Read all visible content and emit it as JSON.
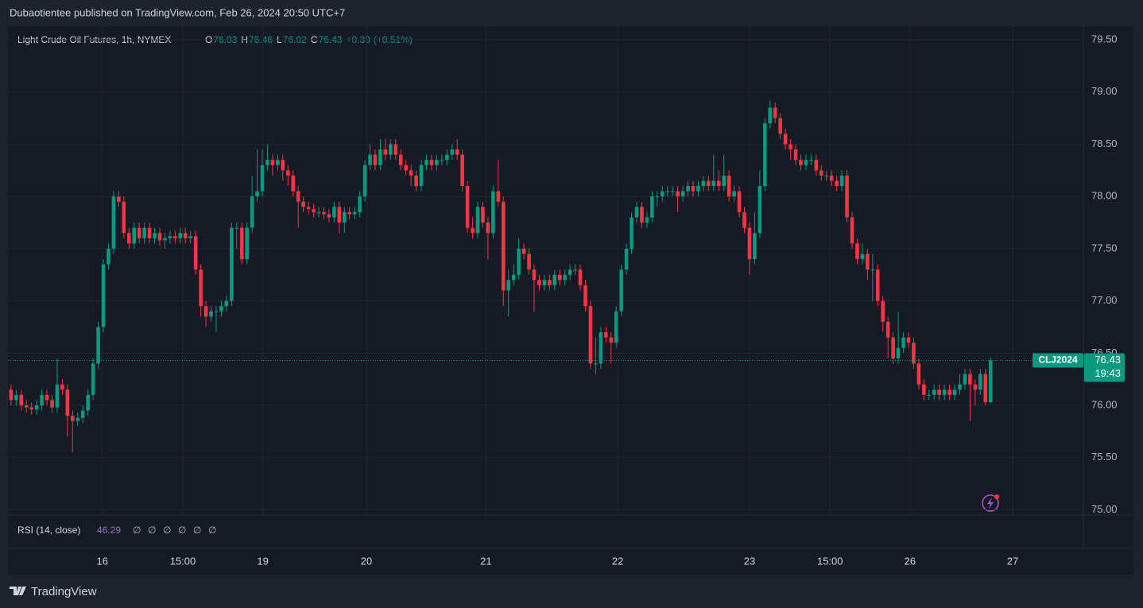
{
  "header": {
    "text": "Dubaotientee published on TradingView.com, Feb 26, 2024 20:50 UTC+7"
  },
  "footer": {
    "logo": "TradingView"
  },
  "chart_data": {
    "type": "candlestick",
    "title": "Light Crude Oil Futures, 1h, NYMEX",
    "legend_labels": {
      "open": "O",
      "high": "H",
      "low": "L",
      "close": "C"
    },
    "change": "+0.39",
    "change_pct": "(+0.51%)",
    "symbol": "CLJ2024",
    "countdown": "19:43",
    "up_color": "#089981",
    "down_color": "#f23645",
    "open": [
      76.15,
      76.05,
      76.1,
      76.0,
      75.98,
      75.96,
      76.0,
      76.1,
      76.05,
      75.98,
      76.2,
      76.15,
      75.9,
      75.85,
      75.88,
      75.95,
      76.1,
      76.4,
      76.75,
      77.35,
      77.5,
      78.0,
      77.95,
      77.65,
      77.55,
      77.7,
      77.6,
      77.7,
      77.6,
      77.65,
      77.58,
      77.6,
      77.62,
      77.6,
      77.65,
      77.6,
      77.62,
      77.3,
      76.95,
      76.85,
      76.9,
      76.9,
      76.95,
      77.0,
      77.7,
      77.7,
      77.4,
      77.7,
      78.0,
      78.05,
      78.3,
      78.35,
      78.3,
      78.35,
      78.25,
      78.2,
      78.05,
      77.95,
      77.9,
      77.88,
      77.85,
      77.85,
      77.83,
      77.8,
      77.9,
      77.75,
      77.85,
      77.83,
      77.85,
      78.0,
      78.3,
      78.4,
      78.3,
      78.45,
      78.4,
      78.5,
      78.4,
      78.3,
      78.25,
      78.2,
      78.1,
      78.3,
      78.35,
      78.3,
      78.35,
      78.35,
      78.4,
      78.45,
      78.4,
      78.1,
      77.7,
      77.65,
      77.9,
      77.75,
      77.65,
      78.05,
      77.95,
      77.1,
      77.2,
      77.25,
      77.5,
      77.45,
      77.3,
      77.2,
      77.15,
      77.2,
      77.15,
      77.25,
      77.2,
      77.25,
      77.3,
      77.3,
      77.15,
      76.95,
      76.4,
      76.4,
      76.7,
      76.65,
      76.6,
      76.9,
      77.3,
      77.5,
      77.8,
      77.9,
      77.75,
      77.8,
      78.0,
      78.0,
      78.05,
      78.05,
      78.05,
      78.0,
      78.05,
      78.1,
      78.05,
      78.1,
      78.15,
      78.1,
      78.15,
      78.1,
      78.2,
      78.0,
      78.05,
      77.85,
      77.7,
      77.4,
      77.65,
      78.1,
      78.7,
      78.85,
      78.75,
      78.6,
      78.5,
      78.45,
      78.35,
      78.3,
      78.35,
      78.35,
      78.25,
      78.2,
      78.2,
      78.15,
      78.1,
      78.2,
      77.8,
      77.55,
      77.4,
      77.45,
      77.3,
      77.3,
      77.0,
      76.8,
      76.65,
      76.45,
      76.55,
      76.65,
      76.6,
      76.4,
      76.2,
      76.1,
      76.1,
      76.15,
      76.1,
      76.15,
      76.1,
      76.15,
      76.2,
      76.3,
      76.2,
      76.15,
      76.3,
      76.03
    ],
    "high": [
      76.2,
      76.15,
      76.15,
      76.05,
      76.03,
      76.05,
      76.15,
      76.15,
      76.1,
      76.45,
      76.25,
      76.2,
      75.95,
      75.93,
      76.0,
      76.15,
      76.45,
      76.8,
      77.4,
      77.55,
      78.05,
      78.05,
      78.0,
      77.7,
      77.75,
      77.75,
      77.75,
      77.75,
      77.7,
      77.7,
      77.65,
      77.67,
      77.67,
      77.7,
      77.7,
      77.67,
      77.67,
      77.35,
      77.0,
      76.95,
      76.95,
      77.0,
      77.05,
      77.75,
      77.75,
      77.75,
      77.75,
      78.2,
      78.45,
      78.45,
      78.5,
      78.4,
      78.4,
      78.4,
      78.3,
      78.25,
      78.1,
      78.0,
      77.95,
      77.93,
      77.9,
      77.9,
      77.88,
      77.95,
      77.95,
      77.9,
      77.9,
      77.9,
      78.05,
      78.35,
      78.5,
      78.45,
      78.55,
      78.55,
      78.55,
      78.55,
      78.45,
      78.35,
      78.3,
      78.25,
      78.35,
      78.4,
      78.4,
      78.4,
      78.4,
      78.45,
      78.5,
      78.55,
      78.45,
      78.15,
      77.8,
      77.95,
      77.95,
      77.8,
      78.1,
      78.35,
      78.0,
      77.3,
      77.35,
      77.6,
      77.55,
      77.5,
      77.35,
      77.25,
      77.25,
      77.25,
      77.3,
      77.3,
      77.3,
      77.35,
      77.35,
      77.35,
      77.2,
      77.0,
      76.65,
      76.75,
      76.75,
      76.7,
      76.95,
      77.35,
      77.55,
      77.85,
      77.95,
      77.95,
      77.85,
      78.05,
      78.05,
      78.1,
      78.1,
      78.1,
      78.1,
      78.1,
      78.15,
      78.15,
      78.15,
      78.2,
      78.2,
      78.4,
      78.25,
      78.4,
      78.25,
      78.1,
      78.1,
      77.9,
      77.75,
      77.85,
      78.25,
      78.75,
      78.92,
      78.9,
      78.8,
      78.65,
      78.55,
      78.5,
      78.4,
      78.4,
      78.4,
      78.4,
      78.3,
      78.25,
      78.25,
      78.2,
      78.25,
      78.25,
      77.85,
      77.6,
      77.55,
      77.5,
      77.45,
      77.35,
      77.05,
      76.85,
      76.7,
      76.9,
      76.7,
      76.7,
      76.65,
      76.45,
      76.25,
      76.15,
      76.2,
      76.2,
      76.2,
      76.2,
      76.2,
      76.3,
      76.35,
      76.35,
      76.25,
      76.35,
      76.35,
      76.46
    ],
    "low": [
      76.0,
      76.0,
      75.95,
      75.93,
      75.91,
      75.91,
      75.95,
      76.0,
      75.93,
      75.93,
      76.1,
      75.7,
      75.55,
      75.8,
      75.83,
      75.9,
      76.05,
      76.35,
      76.7,
      77.3,
      77.45,
      77.9,
      77.6,
      77.5,
      77.5,
      77.55,
      77.55,
      77.55,
      77.55,
      77.53,
      77.5,
      77.55,
      77.55,
      77.55,
      77.55,
      77.55,
      77.25,
      76.85,
      76.75,
      76.8,
      76.7,
      76.85,
      76.9,
      76.95,
      77.5,
      77.35,
      77.35,
      77.65,
      77.95,
      78.0,
      78.25,
      78.2,
      78.25,
      78.15,
      78.1,
      78.0,
      77.7,
      77.85,
      77.83,
      77.8,
      77.8,
      77.78,
      77.75,
      77.75,
      77.65,
      77.65,
      77.78,
      77.78,
      77.8,
      77.95,
      78.25,
      78.25,
      78.25,
      78.35,
      78.35,
      78.35,
      78.25,
      78.2,
      78.1,
      78.05,
      78.05,
      78.25,
      78.25,
      78.25,
      78.3,
      78.3,
      78.35,
      78.35,
      78.05,
      77.65,
      77.6,
      77.6,
      77.7,
      77.4,
      77.6,
      77.9,
      76.95,
      76.85,
      77.15,
      77.2,
      77.4,
      77.25,
      76.9,
      77.1,
      77.1,
      77.1,
      77.1,
      77.15,
      77.15,
      77.2,
      77.25,
      77.1,
      76.9,
      76.35,
      76.3,
      76.35,
      76.6,
      76.4,
      76.55,
      76.85,
      77.25,
      77.45,
      77.75,
      77.7,
      77.7,
      77.75,
      77.9,
      77.95,
      78.0,
      78.0,
      77.85,
      77.95,
      78.0,
      78.0,
      78.0,
      78.05,
      78.05,
      78.05,
      78.05,
      78.05,
      77.95,
      77.95,
      77.8,
      77.65,
      77.25,
      77.35,
      77.6,
      78.05,
      78.65,
      78.7,
      78.55,
      78.45,
      78.35,
      78.3,
      78.25,
      78.25,
      78.3,
      78.2,
      78.15,
      78.15,
      78.1,
      78.05,
      78.05,
      77.75,
      77.5,
      77.35,
      77.35,
      77.2,
      77.0,
      76.95,
      76.7,
      76.45,
      76.4,
      76.4,
      76.5,
      76.55,
      76.35,
      76.15,
      76.05,
      76.05,
      76.05,
      76.05,
      76.05,
      76.05,
      76.05,
      76.1,
      76.15,
      75.85,
      76.0,
      76.1,
      76.0,
      76.02
    ],
    "close": [
      76.05,
      76.1,
      76.0,
      75.98,
      75.96,
      76.0,
      76.1,
      76.05,
      75.98,
      76.2,
      76.15,
      75.9,
      75.85,
      75.88,
      75.95,
      76.1,
      76.4,
      76.75,
      77.35,
      77.5,
      78.0,
      77.95,
      77.65,
      77.55,
      77.7,
      77.6,
      77.7,
      77.6,
      77.65,
      77.58,
      77.6,
      77.62,
      77.6,
      77.65,
      77.6,
      77.62,
      77.3,
      76.95,
      76.85,
      76.9,
      76.9,
      76.95,
      77.0,
      77.7,
      77.7,
      77.4,
      77.7,
      78.0,
      78.05,
      78.3,
      78.35,
      78.3,
      78.35,
      78.25,
      78.2,
      78.05,
      77.95,
      77.9,
      77.88,
      77.85,
      77.85,
      77.83,
      77.8,
      77.9,
      77.75,
      77.85,
      77.83,
      77.85,
      78.0,
      78.3,
      78.4,
      78.3,
      78.45,
      78.4,
      78.5,
      78.4,
      78.3,
      78.25,
      78.2,
      78.1,
      78.3,
      78.35,
      78.3,
      78.35,
      78.35,
      78.4,
      78.45,
      78.4,
      78.1,
      77.7,
      77.65,
      77.9,
      77.75,
      77.65,
      78.05,
      77.95,
      77.1,
      77.2,
      77.25,
      77.5,
      77.45,
      77.3,
      77.2,
      77.15,
      77.2,
      77.15,
      77.25,
      77.2,
      77.25,
      77.3,
      77.3,
      77.15,
      76.95,
      76.4,
      76.4,
      76.7,
      76.65,
      76.6,
      76.9,
      77.3,
      77.5,
      77.8,
      77.9,
      77.75,
      77.8,
      78.0,
      78.0,
      78.05,
      78.05,
      78.05,
      78.0,
      78.05,
      78.1,
      78.05,
      78.1,
      78.15,
      78.1,
      78.15,
      78.1,
      78.2,
      78.0,
      78.05,
      77.85,
      77.7,
      77.4,
      77.65,
      78.1,
      78.7,
      78.85,
      78.75,
      78.6,
      78.5,
      78.45,
      78.35,
      78.3,
      78.35,
      78.35,
      78.25,
      78.2,
      78.2,
      78.15,
      78.1,
      78.2,
      77.8,
      77.55,
      77.4,
      77.45,
      77.3,
      77.3,
      77.0,
      76.8,
      76.65,
      76.45,
      76.55,
      76.65,
      76.6,
      76.4,
      76.2,
      76.1,
      76.1,
      76.15,
      76.1,
      76.15,
      76.1,
      76.15,
      76.2,
      76.3,
      76.2,
      76.15,
      76.3,
      76.03,
      76.43
    ],
    "xlim": [
      -0.6,
      209.1
    ],
    "xticks": [
      {
        "value": 17.8,
        "label": "16"
      },
      {
        "value": 33.5,
        "label": "15:00"
      },
      {
        "value": 49.1,
        "label": "19"
      },
      {
        "value": 69.3,
        "label": "20"
      },
      {
        "value": 92.6,
        "label": "21"
      },
      {
        "value": 118.3,
        "label": "22"
      },
      {
        "value": 144,
        "label": "23"
      },
      {
        "value": 159.7,
        "label": "15:00"
      },
      {
        "value": 175.3,
        "label": "26"
      },
      {
        "value": 195.3,
        "label": "27"
      }
    ],
    "ylim": [
      74.95,
      79.63
    ],
    "yticks": [
      {
        "value": 75,
        "label": "75.00"
      },
      {
        "value": 75.5,
        "label": "75.50"
      },
      {
        "value": 76,
        "label": "76.00"
      },
      {
        "value": 76.5,
        "label": "76.50"
      },
      {
        "value": 77,
        "label": "77.00"
      },
      {
        "value": 77.5,
        "label": "77.50"
      },
      {
        "value": 78,
        "label": "78.00"
      },
      {
        "value": 78.5,
        "label": "78.50"
      },
      {
        "value": 79,
        "label": "79.00"
      },
      {
        "value": 79.5,
        "label": "79.50"
      }
    ],
    "grid": true,
    "rsi": {
      "label": "RSI (14, close)",
      "value": 46.29,
      "placeholders": [
        "∅",
        "∅",
        "∅",
        "∅",
        "∅",
        "∅"
      ]
    }
  }
}
